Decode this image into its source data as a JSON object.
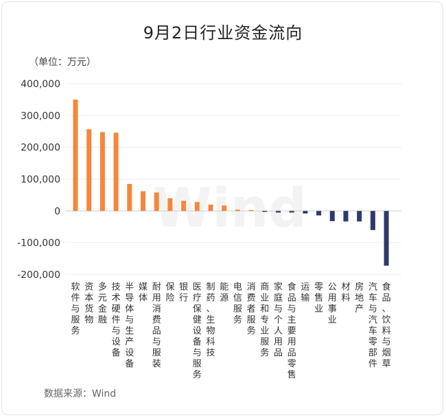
{
  "chart_data": {
    "type": "bar",
    "title": "9月2日行业资金流向",
    "unit_label": "（单位：万元）",
    "source": "数据来源：Wind",
    "watermark": "Wind",
    "ylim": [
      -200000,
      400000
    ],
    "yticks": [
      -200000,
      -100000,
      0,
      100000,
      200000,
      300000,
      400000
    ],
    "ytick_labels": [
      "-200,000",
      "-100,000",
      "0",
      "100,000",
      "200,000",
      "300,000",
      "400,000"
    ],
    "positive_color": "#f5873a",
    "negative_color": "#2e3a6b",
    "categories": [
      "软件与服务",
      "资本货物",
      "多元金融",
      "技术硬件与设备",
      "半导体与生产设备",
      "媒体",
      "耐用消费品与服装",
      "保险",
      "银行",
      "医疗保健设备与服务",
      "制药、生物科技",
      "能源",
      "电信服务",
      "消费者服务",
      "商业和专业服务",
      "家庭与个人用品",
      "食品与主要用品零售",
      "运输",
      "零售业",
      "公用事业",
      "材料",
      "房地产",
      "汽车与汽车零部件",
      "食品、饮料与烟草"
    ],
    "values": [
      350000,
      257000,
      248000,
      246000,
      85000,
      62000,
      58000,
      40000,
      32000,
      28000,
      20000,
      17000,
      4000,
      3000,
      -3000,
      -5000,
      -5000,
      -8000,
      -14000,
      -32000,
      -33000,
      -33000,
      -60000,
      -172000
    ]
  }
}
